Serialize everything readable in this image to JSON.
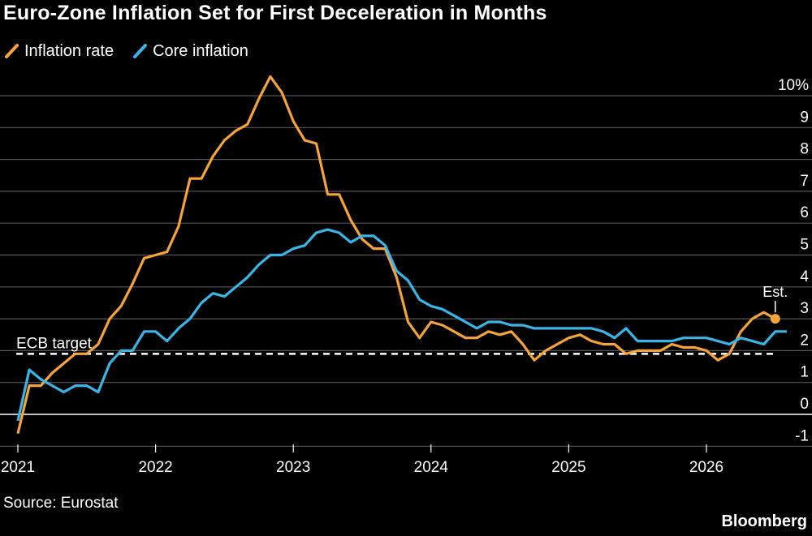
{
  "header": {
    "title": "Euro-Zone Inflation Set for First Deceleration in Months"
  },
  "legend": [
    {
      "label": "Inflation rate",
      "color": "#F6A33C",
      "icon": "slash-line-icon"
    },
    {
      "label": "Core inflation",
      "color": "#39B6E8",
      "icon": "slash-line-icon"
    }
  ],
  "footer": {
    "source": "Source: Eurostat",
    "brand": "Bloomberg"
  },
  "chart_data": {
    "type": "line",
    "title": "Euro-Zone Inflation Set for First Deceleration in Months",
    "xlabel": "",
    "ylabel": "",
    "xlim": [
      2021.0,
      2026.75
    ],
    "ylim": [
      -1.6,
      10.5
    ],
    "y_ticks": [
      -1,
      0,
      1,
      2,
      3,
      4,
      5,
      6,
      7,
      8,
      9,
      10
    ],
    "y_tick_labels": [
      "-1",
      "0",
      "1",
      "2",
      "3",
      "4",
      "5",
      "6",
      "7",
      "8",
      "9",
      "10%"
    ],
    "x_ticks": [
      2021,
      2022,
      2023,
      2024,
      2025,
      2026
    ],
    "x_tick_labels": [
      "2021",
      "2022",
      "2023",
      "2024",
      "2025",
      "2026"
    ],
    "grid": true,
    "legend_position": "top-left",
    "reference_line": {
      "value": 1.9,
      "label": "ECB target",
      "style": "dashed"
    },
    "estimate_label": "Est.",
    "series": [
      {
        "name": "Inflation rate",
        "color": "#F6A33C",
        "values": [
          -0.6,
          0.9,
          0.9,
          1.3,
          1.6,
          1.9,
          1.9,
          2.2,
          3.0,
          3.4,
          4.1,
          4.9,
          5.0,
          5.1,
          5.9,
          7.4,
          7.4,
          8.1,
          8.6,
          8.9,
          9.1,
          9.9,
          10.6,
          10.1,
          9.2,
          8.6,
          8.5,
          6.9,
          6.9,
          6.1,
          5.5,
          5.2,
          5.2,
          4.3,
          2.9,
          2.4,
          2.9,
          2.8,
          2.6,
          2.4,
          2.4,
          2.6,
          2.5,
          2.6,
          2.2,
          1.7,
          2.0,
          2.2,
          2.4,
          2.5,
          2.3,
          2.2,
          2.2,
          1.9,
          2.0,
          2.0,
          2.0,
          2.2,
          2.1,
          2.1,
          2.0,
          1.7,
          1.9,
          2.6,
          3.0,
          3.2,
          3.0
        ],
        "estimate_value": 3.0
      },
      {
        "name": "Core inflation",
        "color": "#39B6E8",
        "values": [
          -0.2,
          1.4,
          1.1,
          0.9,
          0.7,
          0.9,
          0.9,
          0.7,
          1.6,
          2.0,
          2.0,
          2.6,
          2.6,
          2.3,
          2.7,
          3.0,
          3.5,
          3.8,
          3.7,
          4.0,
          4.3,
          4.7,
          5.0,
          5.0,
          5.2,
          5.3,
          5.7,
          5.8,
          5.7,
          5.4,
          5.6,
          5.6,
          5.3,
          4.5,
          4.2,
          3.6,
          3.4,
          3.3,
          3.1,
          2.9,
          2.7,
          2.9,
          2.9,
          2.8,
          2.8,
          2.7,
          2.7,
          2.7,
          2.7,
          2.7,
          2.7,
          2.6,
          2.4,
          2.7,
          2.3,
          2.3,
          2.3,
          2.3,
          2.4,
          2.4,
          2.4,
          2.3,
          2.2,
          2.4,
          2.3,
          2.2,
          2.6,
          2.6
        ]
      }
    ]
  }
}
